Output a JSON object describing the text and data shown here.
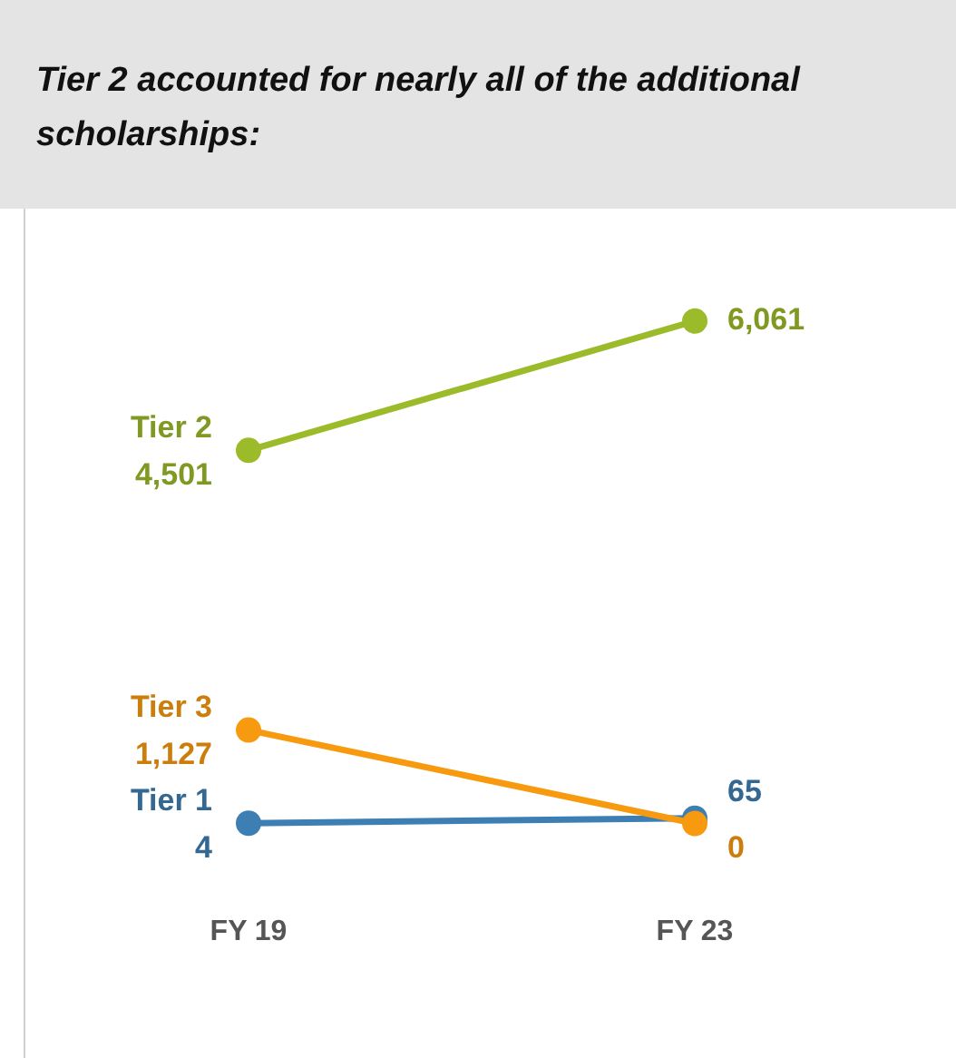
{
  "chart_data": {
    "type": "line",
    "title": "Tier 2 accounted for nearly all of the additional scholarships:",
    "categories": [
      "FY 19",
      "FY 23"
    ],
    "series": [
      {
        "name": "Tier 2",
        "color": "#9bbb2a",
        "values": [
          4501,
          6061
        ],
        "value_labels": [
          "4,501",
          "6,061"
        ]
      },
      {
        "name": "Tier 3",
        "color": "#f79a0f",
        "values": [
          1127,
          0
        ],
        "value_labels": [
          "1,127",
          "0"
        ]
      },
      {
        "name": "Tier 1",
        "color": "#3e7fb3",
        "values": [
          4,
          65
        ],
        "value_labels": [
          "4",
          "65"
        ]
      }
    ],
    "tick_labels": "x",
    "grid": false,
    "legend": false,
    "marker": "circle",
    "line_style": "solid"
  }
}
